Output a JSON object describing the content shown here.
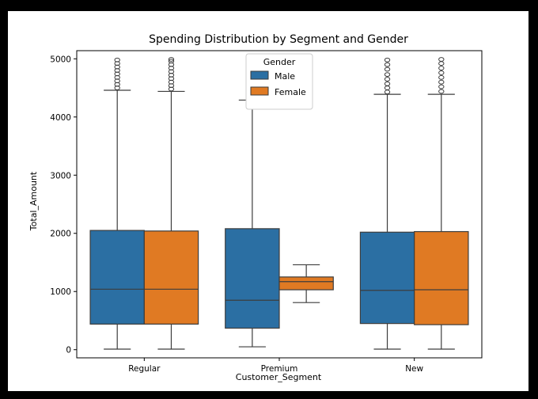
{
  "chart_data": {
    "type": "box",
    "title": "Spending Distribution by Segment and Gender",
    "xlabel": "Customer_Segment",
    "ylabel": "Total_Amount",
    "categories": [
      "Regular",
      "Premium",
      "New"
    ],
    "ylim": [
      -140,
      5140
    ],
    "yticks": [
      0,
      1000,
      2000,
      3000,
      4000,
      5000
    ],
    "grid": false,
    "legend": {
      "title": "Gender",
      "placement": "top-center",
      "entries": [
        "Male",
        "Female"
      ]
    },
    "series": [
      {
        "name": "Male",
        "color": "#2b6fa3",
        "boxes": [
          {
            "whisker_low": 10,
            "q1": 440,
            "median": 1040,
            "q3": 2050,
            "whisker_high": 4460,
            "outliers": [
              4500,
              4560,
              4620,
              4680,
              4740,
              4800,
              4860,
              4920,
              4980
            ]
          },
          {
            "whisker_low": 50,
            "q1": 370,
            "median": 850,
            "q3": 2080,
            "whisker_high": 4290,
            "outliers": []
          },
          {
            "whisker_low": 10,
            "q1": 450,
            "median": 1020,
            "q3": 2020,
            "whisker_high": 4390,
            "outliers": [
              4430,
              4500,
              4570,
              4650,
              4730,
              4820,
              4900,
              4980
            ]
          }
        ]
      },
      {
        "name": "Female",
        "color": "#e07a23",
        "boxes": [
          {
            "whisker_low": 10,
            "q1": 440,
            "median": 1040,
            "q3": 2040,
            "whisker_high": 4440,
            "outliers": [
              4480,
              4540,
              4600,
              4660,
              4720,
              4780,
              4840,
              4900,
              4960,
              4990
            ]
          },
          {
            "whisker_low": 810,
            "q1": 1030,
            "median": 1170,
            "q3": 1250,
            "whisker_high": 1460,
            "outliers": []
          },
          {
            "whisker_low": 10,
            "q1": 430,
            "median": 1030,
            "q3": 2030,
            "whisker_high": 4390,
            "outliers": [
              4440,
              4520,
              4600,
              4680,
              4760,
              4840,
              4920,
              4990
            ]
          }
        ]
      }
    ]
  }
}
